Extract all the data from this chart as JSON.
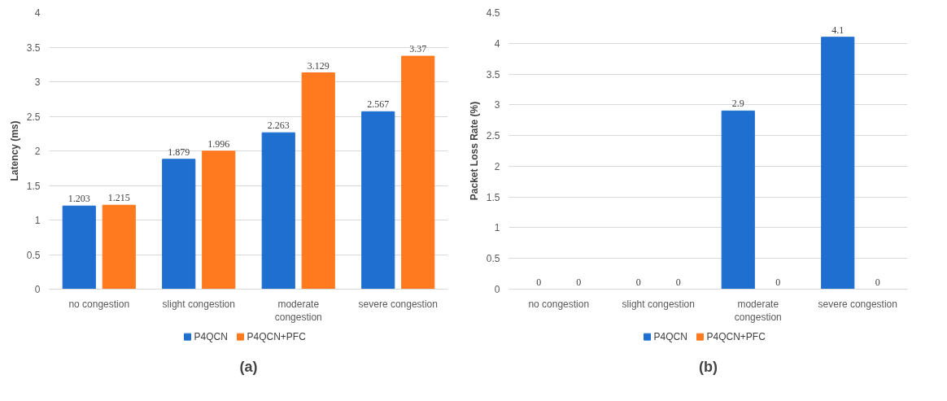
{
  "chart_data": [
    {
      "type": "bar",
      "categories": [
        "no congestion",
        "slight congestion",
        "moderate congestion",
        "severe congestion"
      ],
      "ylabel": "Latency (ms)",
      "ylim": [
        0,
        4
      ],
      "yticks": [
        0,
        0.5,
        1,
        1.5,
        2,
        2.5,
        3,
        3.5,
        4
      ],
      "grid": "y",
      "legend": "bottom",
      "data_labels": true,
      "annotations": [
        "(a)"
      ],
      "series": [
        {
          "name": "P4QCN",
          "color": "#1f6fd0",
          "values": [
            1.203,
            1.879,
            2.263,
            2.567
          ]
        },
        {
          "name": "P4QCN+PFC",
          "color": "#ff7a1f",
          "values": [
            1.215,
            1.996,
            3.129,
            3.37
          ]
        }
      ]
    },
    {
      "type": "bar",
      "categories": [
        "no congestion",
        "slight congestion",
        "moderate congestion",
        "severe congestion"
      ],
      "ylabel": "Packet Loss Rate (%)",
      "ylim": [
        0,
        4.5
      ],
      "yticks": [
        0,
        0.5,
        1,
        1.5,
        2,
        2.5,
        3,
        3.5,
        4,
        4.5
      ],
      "grid": "y",
      "legend": "bottom",
      "data_labels": true,
      "annotations": [
        "(b)"
      ],
      "series": [
        {
          "name": "P4QCN",
          "color": "#1f6fd0",
          "values": [
            0,
            0,
            2.9,
            4.1
          ]
        },
        {
          "name": "P4QCN+PFC",
          "color": "#ff7a1f",
          "values": [
            0,
            0,
            0,
            0
          ]
        }
      ]
    }
  ]
}
